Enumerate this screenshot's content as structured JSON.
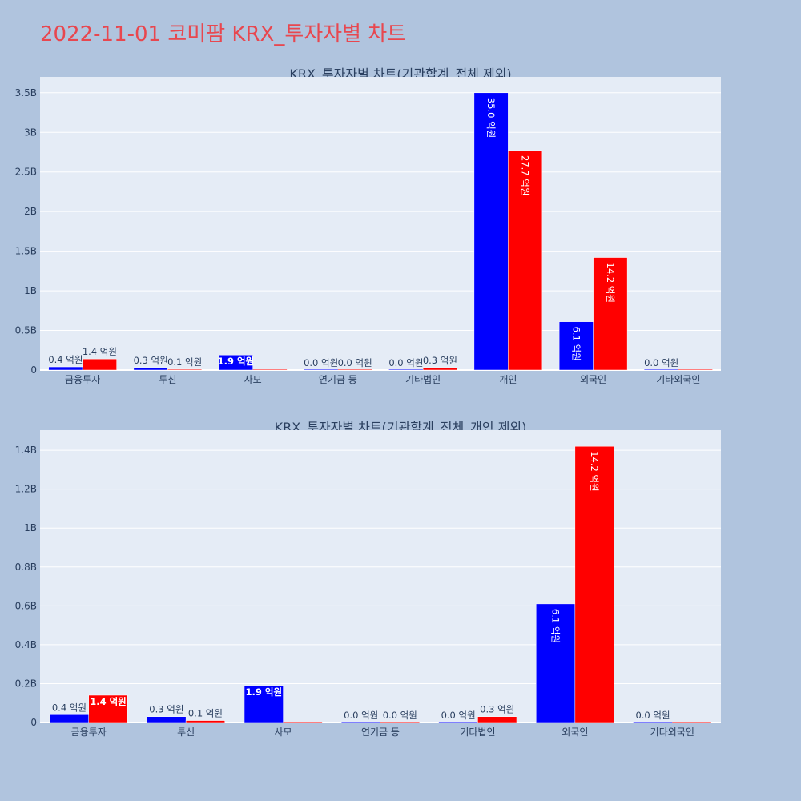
{
  "page_title": "2022-11-01 코미팜 KRX_투자자별 차트",
  "colors": {
    "buy": "#0000ff",
    "sell": "#ff0000",
    "plot_bg": "#e5ecf6",
    "page_bg": "#b0c4de",
    "title": "#e8474f"
  },
  "chart_data": [
    {
      "type": "bar",
      "title": "KRX_투자자별 차트(기관합계_전체 제외)",
      "categories": [
        "금융투자",
        "투신",
        "사모",
        "연기금 등",
        "기타법인",
        "개인",
        "외국인",
        "기타외국인"
      ],
      "series": [
        {
          "color": "#0000ff",
          "values": [
            40000000,
            30000000,
            190000000,
            0,
            0,
            3500000000,
            610000000,
            0
          ],
          "labels": [
            "0.4 억원",
            "0.3 억원",
            "1.9 억원",
            "0.0 억원",
            "0.0 억원",
            "35.0 억원",
            "6.1 억원",
            "0.0 억원"
          ]
        },
        {
          "color": "#ff0000",
          "values": [
            140000000,
            10000000,
            0,
            0,
            30000000,
            2770000000,
            1420000000,
            0
          ],
          "labels": [
            "1.4 억원",
            "0.1 억원",
            "",
            "0.0 억원",
            "0.3 억원",
            "27.7 억원",
            "14.2 억원",
            ""
          ]
        }
      ],
      "yticks": [
        0,
        500000000,
        1000000000,
        1500000000,
        2000000000,
        2500000000,
        3000000000,
        3500000000
      ],
      "ytick_labels": [
        "0",
        "0.5B",
        "1B",
        "1.5B",
        "2B",
        "2.5B",
        "3B",
        "3.5B"
      ],
      "ylim": [
        0,
        3680000000
      ],
      "grid": true
    },
    {
      "type": "bar",
      "title": "KRX_투자자별 차트(기관합계_전체_개인 제외)",
      "categories": [
        "금융투자",
        "투신",
        "사모",
        "연기금 등",
        "기타법인",
        "외국인",
        "기타외국인"
      ],
      "series": [
        {
          "color": "#0000ff",
          "values": [
            40000000,
            30000000,
            190000000,
            0,
            0,
            610000000,
            0
          ],
          "labels": [
            "0.4 억원",
            "0.3 억원",
            "1.9 억원",
            "0.0 억원",
            "0.0 억원",
            "6.1 억원",
            "0.0 억원"
          ]
        },
        {
          "color": "#ff0000",
          "values": [
            140000000,
            10000000,
            0,
            0,
            30000000,
            1420000000,
            0
          ],
          "labels": [
            "1.4 억원",
            "0.1 억원",
            "",
            "0.0 억원",
            "0.3 억원",
            "14.2 억원",
            ""
          ]
        }
      ],
      "yticks": [
        0,
        200000000,
        400000000,
        600000000,
        800000000,
        1000000000,
        1200000000,
        1400000000
      ],
      "ytick_labels": [
        "0",
        "0.2B",
        "0.4B",
        "0.6B",
        "0.8B",
        "1B",
        "1.2B",
        "1.4B"
      ],
      "ylim": [
        0,
        1495000000
      ],
      "grid": true
    }
  ]
}
